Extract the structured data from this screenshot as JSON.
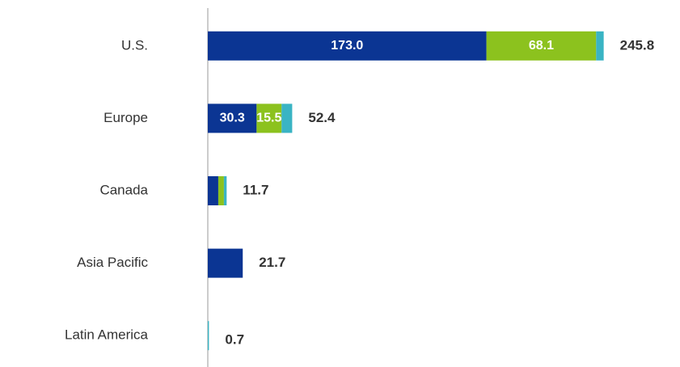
{
  "chart_data": {
    "type": "stacked-barh",
    "categories": [
      "U.S.",
      "Europe",
      "Canada",
      "Asia Pacific",
      "Latin America"
    ],
    "series": [
      {
        "color": "#0b3593",
        "values": [
          173.0,
          30.3,
          6.5,
          21.7,
          0
        ],
        "value_labels": [
          "173.0",
          "30.3",
          null,
          null,
          null
        ]
      },
      {
        "color": "#8cc21e",
        "values": [
          68.1,
          15.5,
          3.5,
          0,
          0
        ],
        "value_labels": [
          "68.1",
          "15.5",
          null,
          null,
          null
        ]
      },
      {
        "color": "#3ab4c4",
        "values": [
          4.7,
          6.6,
          1.7,
          0,
          0.7
        ]
      }
    ],
    "totals": [
      245.8,
      52.4,
      11.7,
      21.7,
      0.7
    ],
    "xlim": [
      0,
      250
    ]
  }
}
